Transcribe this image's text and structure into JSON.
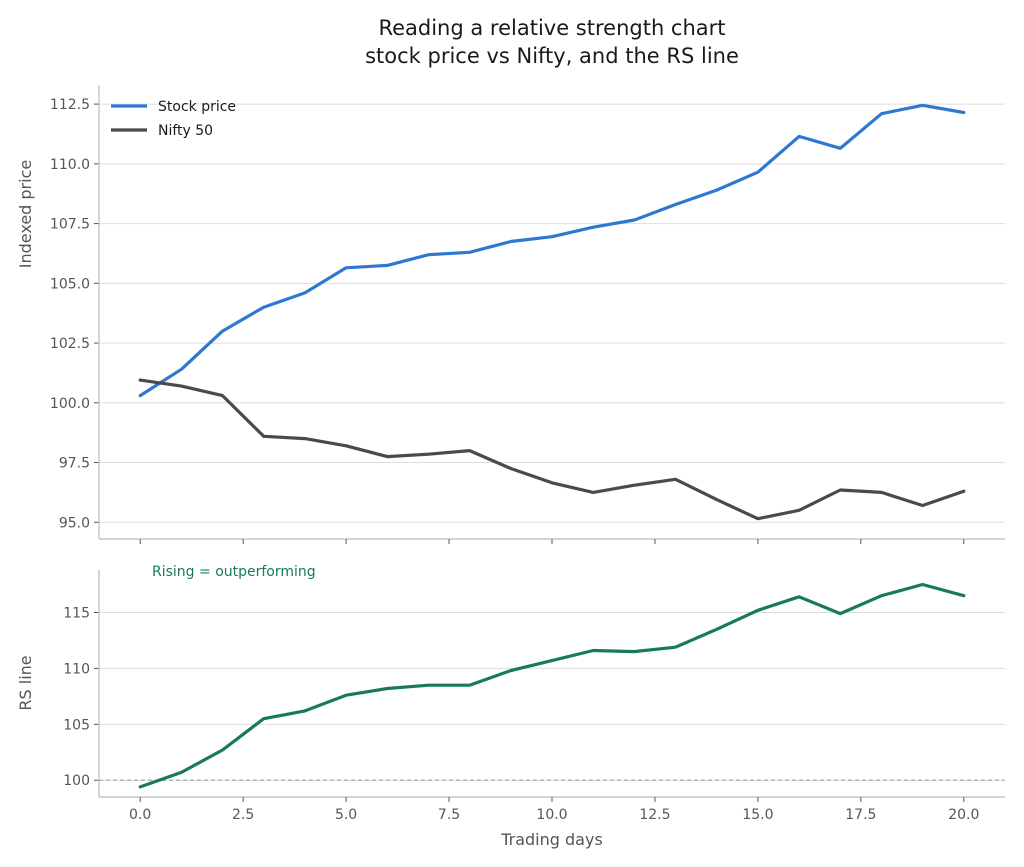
{
  "chart_data": {
    "type": "line",
    "title_lines": [
      "Reading a relative strength chart",
      "stock price vs Nifty, and the RS line"
    ],
    "xlabel": "Trading days",
    "x": [
      0,
      1,
      2,
      3,
      4,
      5,
      6,
      7,
      8,
      9,
      10,
      11,
      12,
      13,
      14,
      15,
      16,
      17,
      18,
      19,
      20
    ],
    "x_ticks": [
      "0.0",
      "2.5",
      "5.0",
      "7.5",
      "10.0",
      "12.5",
      "15.0",
      "17.5",
      "20.0"
    ],
    "x_tick_values": [
      0,
      2.5,
      5,
      7.5,
      10,
      12.5,
      15,
      17.5,
      20
    ],
    "xlim": [
      -1,
      21
    ],
    "panels": [
      {
        "ylabel": "Indexed price",
        "ylim": [
          94.3,
          113.3
        ],
        "y_ticks": [
          "95.0",
          "97.5",
          "100.0",
          "102.5",
          "105.0",
          "107.5",
          "110.0",
          "112.5"
        ],
        "y_tick_values": [
          95,
          97.5,
          100,
          102.5,
          105,
          107.5,
          110,
          112.5
        ],
        "grid": true,
        "legend": "top-left",
        "series": [
          {
            "name": "Stock price",
            "color": "#2e78d2",
            "values": [
              100.3,
              101.4,
              103.0,
              104.0,
              104.6,
              105.65,
              105.75,
              106.2,
              106.3,
              106.75,
              106.95,
              107.35,
              107.65,
              108.3,
              108.9,
              109.65,
              111.15,
              110.65,
              112.1,
              112.45,
              112.15
            ]
          },
          {
            "name": "Nifty 50",
            "color": "#4a4a4a",
            "values": [
              100.95,
              100.7,
              100.3,
              98.6,
              98.5,
              98.2,
              97.75,
              97.85,
              98.0,
              97.25,
              96.65,
              96.25,
              96.55,
              96.8,
              95.95,
              95.15,
              95.5,
              96.35,
              96.25,
              95.7,
              96.3
            ]
          }
        ]
      },
      {
        "ylabel": "RS line",
        "ylim": [
          98.5,
          118.8
        ],
        "y_ticks": [
          "100",
          "105",
          "110",
          "115"
        ],
        "y_tick_values": [
          100,
          105,
          110,
          115
        ],
        "grid": true,
        "reference_line": 100,
        "annotation": {
          "text": "Rising = outperforming",
          "color": "#177a5a"
        },
        "series": [
          {
            "name": "",
            "color": "#177a5a",
            "values": [
              99.4,
              100.7,
              102.7,
              105.5,
              106.2,
              107.6,
              108.2,
              108.5,
              108.5,
              109.8,
              110.7,
              111.6,
              111.5,
              111.9,
              113.5,
              115.2,
              116.4,
              114.9,
              116.5,
              117.5,
              116.5
            ]
          }
        ]
      }
    ]
  }
}
